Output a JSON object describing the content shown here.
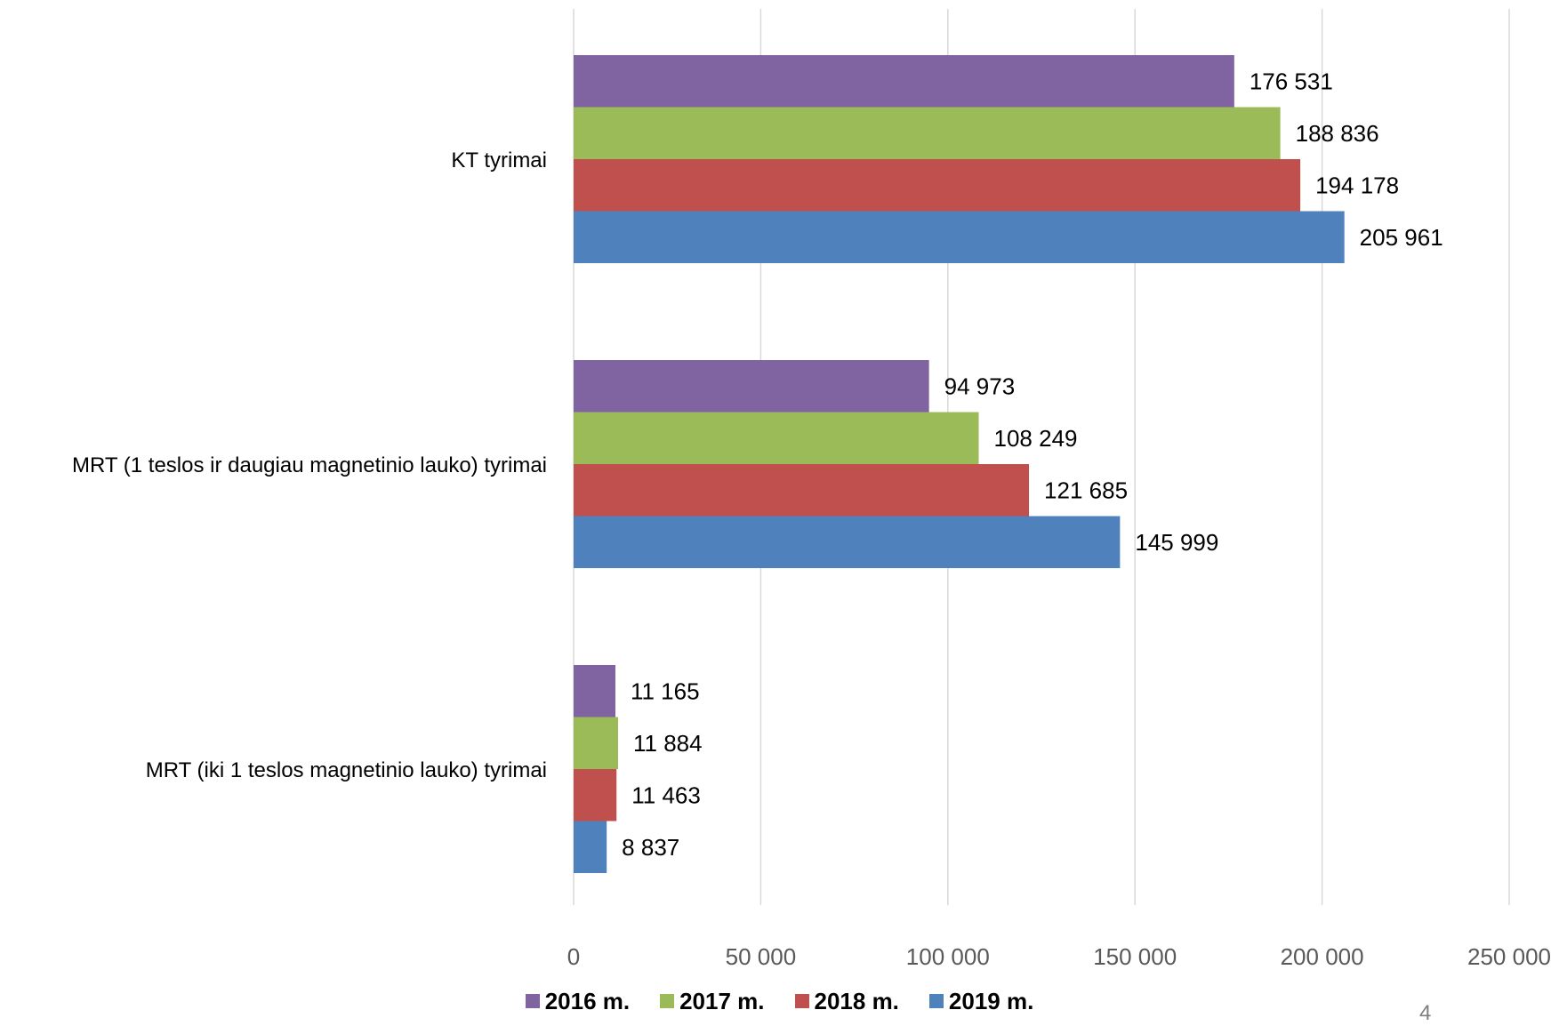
{
  "chart_data": {
    "type": "bar",
    "orientation": "horizontal",
    "categories": [
      "KT tyrimai",
      "MRT (1 teslos ir daugiau magnetinio lauko) tyrimai",
      "MRT (iki 1 teslos magnetinio lauko) tyrimai"
    ],
    "series": [
      {
        "name": "2016 m.",
        "color": "#8064A2",
        "values": [
          176531,
          94973,
          11165
        ],
        "labels": [
          "176 531",
          "94 973",
          "11 165"
        ]
      },
      {
        "name": "2017 m.",
        "color": "#9BBB59",
        "values": [
          188836,
          108249,
          11884
        ],
        "labels": [
          "188 836",
          "108 249",
          "11 884"
        ]
      },
      {
        "name": "2018 m.",
        "color": "#C0504D",
        "values": [
          194178,
          121685,
          11463
        ],
        "labels": [
          "194 178",
          "121 685",
          "11 463"
        ]
      },
      {
        "name": "2019 m.",
        "color": "#4F81BD",
        "values": [
          205961,
          145999,
          8837
        ],
        "labels": [
          "205 961",
          "145 999",
          "8 837"
        ]
      }
    ],
    "xlim": [
      0,
      250000
    ],
    "xticks": [
      0,
      50000,
      100000,
      150000,
      200000,
      250000
    ],
    "xtick_labels": [
      "0",
      "50 000",
      "100 000",
      "150 000",
      "200 000",
      "250 000"
    ],
    "grid": "vertical",
    "legend_position": "bottom",
    "title": "",
    "xlabel": "",
    "ylabel": ""
  },
  "page_number": "4",
  "colors": {
    "gridline": "#D9D9D9",
    "tick_text": "#595959"
  }
}
